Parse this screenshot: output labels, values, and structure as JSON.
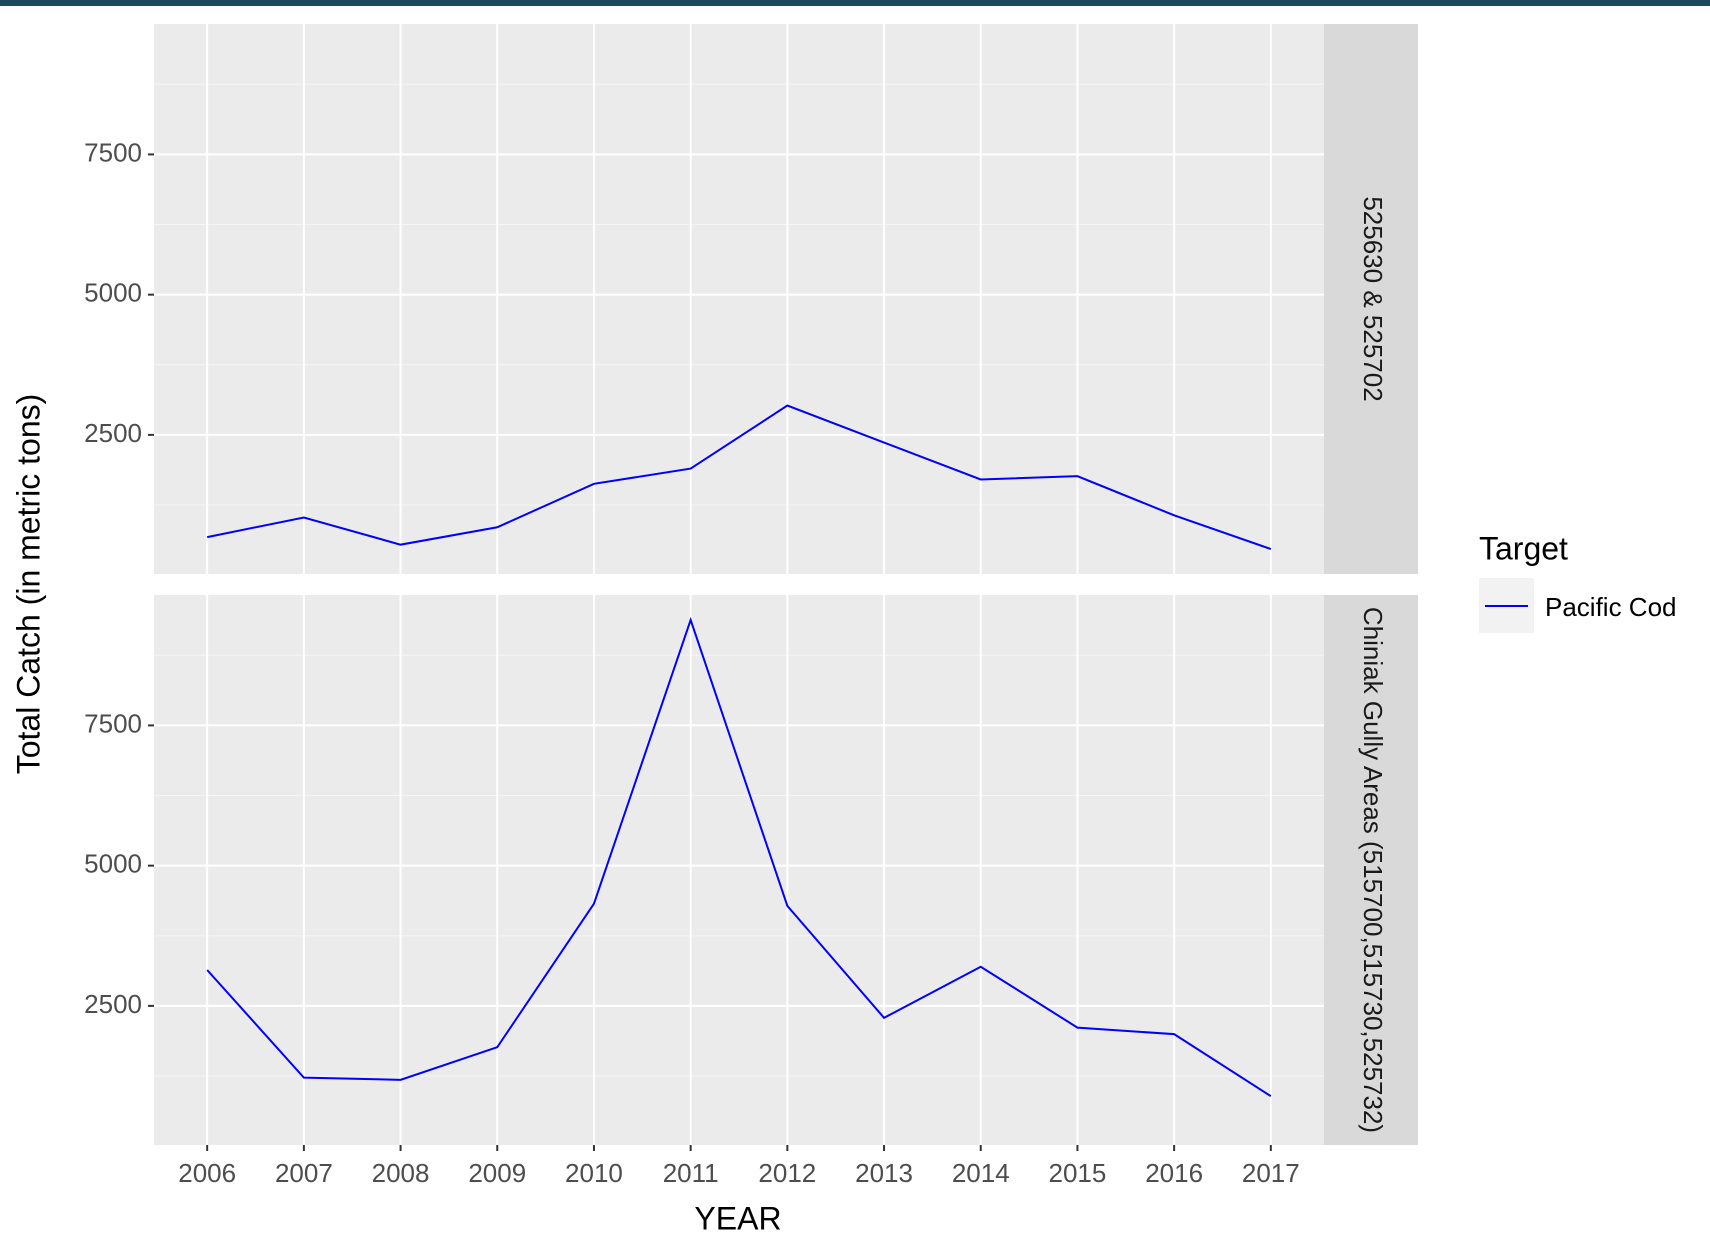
{
  "chart_data": {
    "type": "line",
    "xlabel": "YEAR",
    "ylabel": "Total Catch (in metric tons)",
    "legend_title": "Target",
    "x": [
      2006,
      2007,
      2008,
      2009,
      2010,
      2011,
      2012,
      2013,
      2014,
      2015,
      2016,
      2017
    ],
    "xticks": [
      2006,
      2007,
      2008,
      2009,
      2010,
      2011,
      2012,
      2013,
      2014,
      2015,
      2016,
      2017
    ],
    "xlim": [
      2005.45,
      2017.55
    ],
    "ylim": [
      20,
      9825
    ],
    "yticks": [
      2500,
      5000,
      7500
    ],
    "grid": true,
    "panels": [
      {
        "label": "525630 & 525702",
        "series": [
          {
            "name": "Pacific Cod",
            "color": "#0000ff",
            "values": [
              678,
              1027,
              543,
              853,
              1628,
              1899,
              3023,
              2364,
              1705,
              1764,
              1066,
              465
            ]
          }
        ]
      },
      {
        "label": "Chiniak Gully Areas (515700,515730,525732)",
        "series": [
          {
            "name": "Pacific Cod",
            "color": "#0000ff",
            "values": [
              3140,
              1221,
              1182,
              1764,
              4322,
              9380,
              4283,
              2287,
              3198,
              2112,
              1996,
              891
            ]
          }
        ]
      }
    ]
  }
}
